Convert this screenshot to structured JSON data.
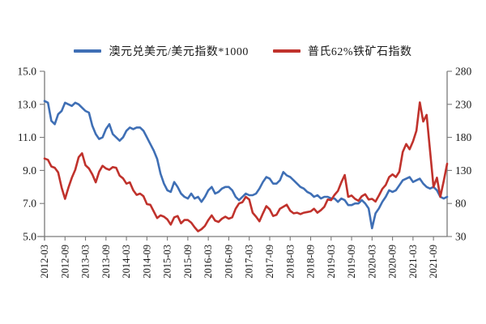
{
  "chart_data": {
    "type": "line",
    "x_start": "2012-03",
    "x_frequency": "monthly",
    "x_tick_labels": [
      "2012-03",
      "2012-09",
      "2013-03",
      "2013-09",
      "2014-03",
      "2014-09",
      "2015-03",
      "2015-09",
      "2016-03",
      "2016-09",
      "2017-03",
      "2017-09",
      "2018-03",
      "2018-09",
      "2019-03",
      "2019-09",
      "2020-03",
      "2020-09",
      "2021-03",
      "2021-09"
    ],
    "left_axis": {
      "min": 5.0,
      "max": 15.0,
      "tick_values": [
        15.0,
        13.0,
        11.0,
        9.0,
        7.0,
        5.0
      ],
      "tick_labels": [
        "15.0",
        "13.0",
        "11.0",
        "9.0",
        "7.0",
        "5.0"
      ]
    },
    "right_axis": {
      "min": 30,
      "max": 280,
      "tick_values": [
        280,
        230,
        180,
        130,
        80,
        30
      ],
      "tick_labels": [
        "280",
        "230",
        "180",
        "130",
        "80",
        "30"
      ]
    },
    "legend": [
      {
        "label": "澳元兑美元/美元指数*1000",
        "color": "#3F6FB5"
      },
      {
        "label": "普氏62%铁矿石指数",
        "color": "#C0322C"
      }
    ],
    "series": [
      {
        "name": "澳元兑美元/美元指数*1000",
        "axis": "left",
        "color": "#3F6FB5",
        "values": [
          13.2,
          13.1,
          12.0,
          11.8,
          12.4,
          12.6,
          13.1,
          13.0,
          12.9,
          13.1,
          13.0,
          12.8,
          12.6,
          12.5,
          11.7,
          11.2,
          10.9,
          11.0,
          11.5,
          11.8,
          11.2,
          11.0,
          10.8,
          11.0,
          11.4,
          11.6,
          11.5,
          11.6,
          11.6,
          11.4,
          11.0,
          10.6,
          10.2,
          9.7,
          8.8,
          8.2,
          7.8,
          7.7,
          8.3,
          8.0,
          7.6,
          7.4,
          7.3,
          7.6,
          7.3,
          7.4,
          7.1,
          7.4,
          7.8,
          8.0,
          7.6,
          7.7,
          7.9,
          8.0,
          8.0,
          7.8,
          7.4,
          7.2,
          7.4,
          7.6,
          7.5,
          7.5,
          7.6,
          7.9,
          8.3,
          8.6,
          8.5,
          8.2,
          8.2,
          8.4,
          8.9,
          8.7,
          8.6,
          8.4,
          8.2,
          8.0,
          7.9,
          7.7,
          7.6,
          7.4,
          7.5,
          7.3,
          7.4,
          7.4,
          7.3,
          7.3,
          7.1,
          7.3,
          7.2,
          6.9,
          6.9,
          7.0,
          7.0,
          7.2,
          7.0,
          6.7,
          5.5,
          6.4,
          6.7,
          7.1,
          7.4,
          7.8,
          7.7,
          7.8,
          8.1,
          8.4,
          8.5,
          8.6,
          8.3,
          8.4,
          8.5,
          8.2,
          8.0,
          7.9,
          8.0,
          7.8,
          7.4,
          7.3,
          7.4
        ]
      },
      {
        "name": "普氏62%铁矿石指数",
        "axis": "right",
        "color": "#C0322C",
        "values": [
          148,
          146,
          136,
          134,
          127,
          104,
          87,
          104,
          119,
          131,
          150,
          156,
          138,
          133,
          124,
          112,
          128,
          137,
          133,
          131,
          135,
          134,
          122,
          118,
          110,
          112,
          100,
          93,
          95,
          91,
          79,
          78,
          68,
          58,
          62,
          60,
          56,
          48,
          59,
          61,
          50,
          55,
          55,
          51,
          44,
          38,
          41,
          46,
          55,
          62,
          54,
          52,
          57,
          60,
          57,
          59,
          72,
          80,
          82,
          90,
          86,
          66,
          60,
          53,
          65,
          76,
          71,
          61,
          63,
          72,
          75,
          78,
          69,
          65,
          66,
          64,
          66,
          67,
          68,
          72,
          66,
          70,
          75,
          86,
          85,
          93,
          99,
          112,
          123,
          90,
          92,
          87,
          84,
          91,
          94,
          86,
          87,
          83,
          92,
          102,
          108,
          120,
          124,
          120,
          128,
          158,
          170,
          162,
          174,
          190,
          233,
          204,
          214,
          160,
          105,
          119,
          90,
          114,
          140
        ]
      }
    ]
  }
}
